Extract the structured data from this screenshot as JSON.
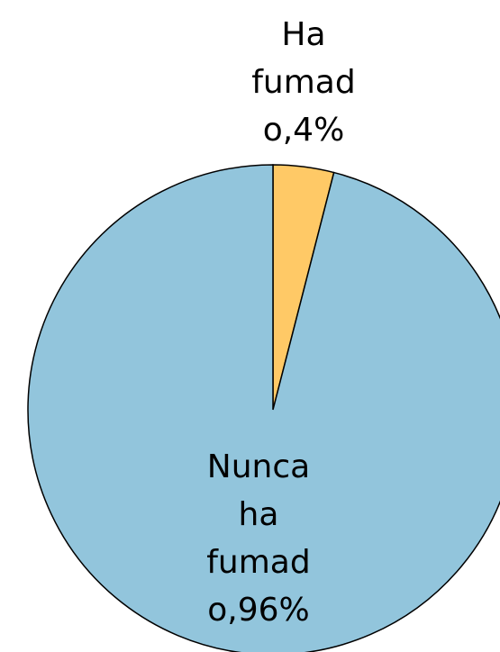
{
  "chart_data": {
    "type": "pie",
    "values": [
      4,
      96
    ],
    "value_labels": [
      "Ha fumado,4%",
      "Nunca ha fumado,96%"
    ],
    "colors": [
      "#ffc966",
      "#92c5dc"
    ]
  }
}
